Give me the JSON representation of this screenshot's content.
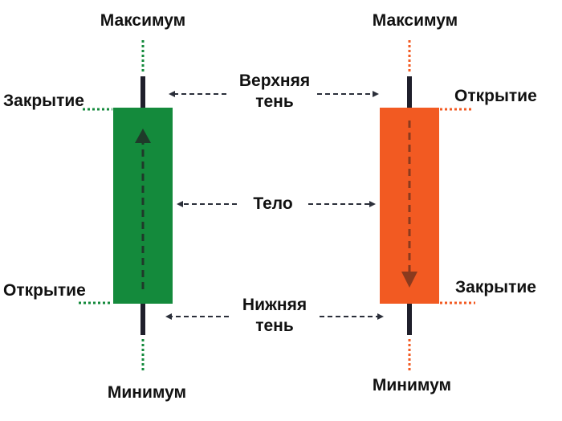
{
  "colors": {
    "bullish": "#148a3c",
    "bearish": "#f25a22",
    "wick": "#1f1f2b",
    "arrow": "#2b2f3a",
    "text": "#111111"
  },
  "bullish_candle": {
    "high_label": "Максимум",
    "close_label": "Закрытие",
    "open_label": "Открытие",
    "low_label": "Минимум"
  },
  "bearish_candle": {
    "high_label": "Максимум",
    "open_label": "Открытие",
    "close_label": "Закрытие",
    "low_label": "Минимум"
  },
  "center": {
    "upper_shadow_line1": "Верхняя",
    "upper_shadow_line2": "тень",
    "body": "Тело",
    "lower_shadow_line1": "Нижняя",
    "lower_shadow_line2": "тень"
  }
}
